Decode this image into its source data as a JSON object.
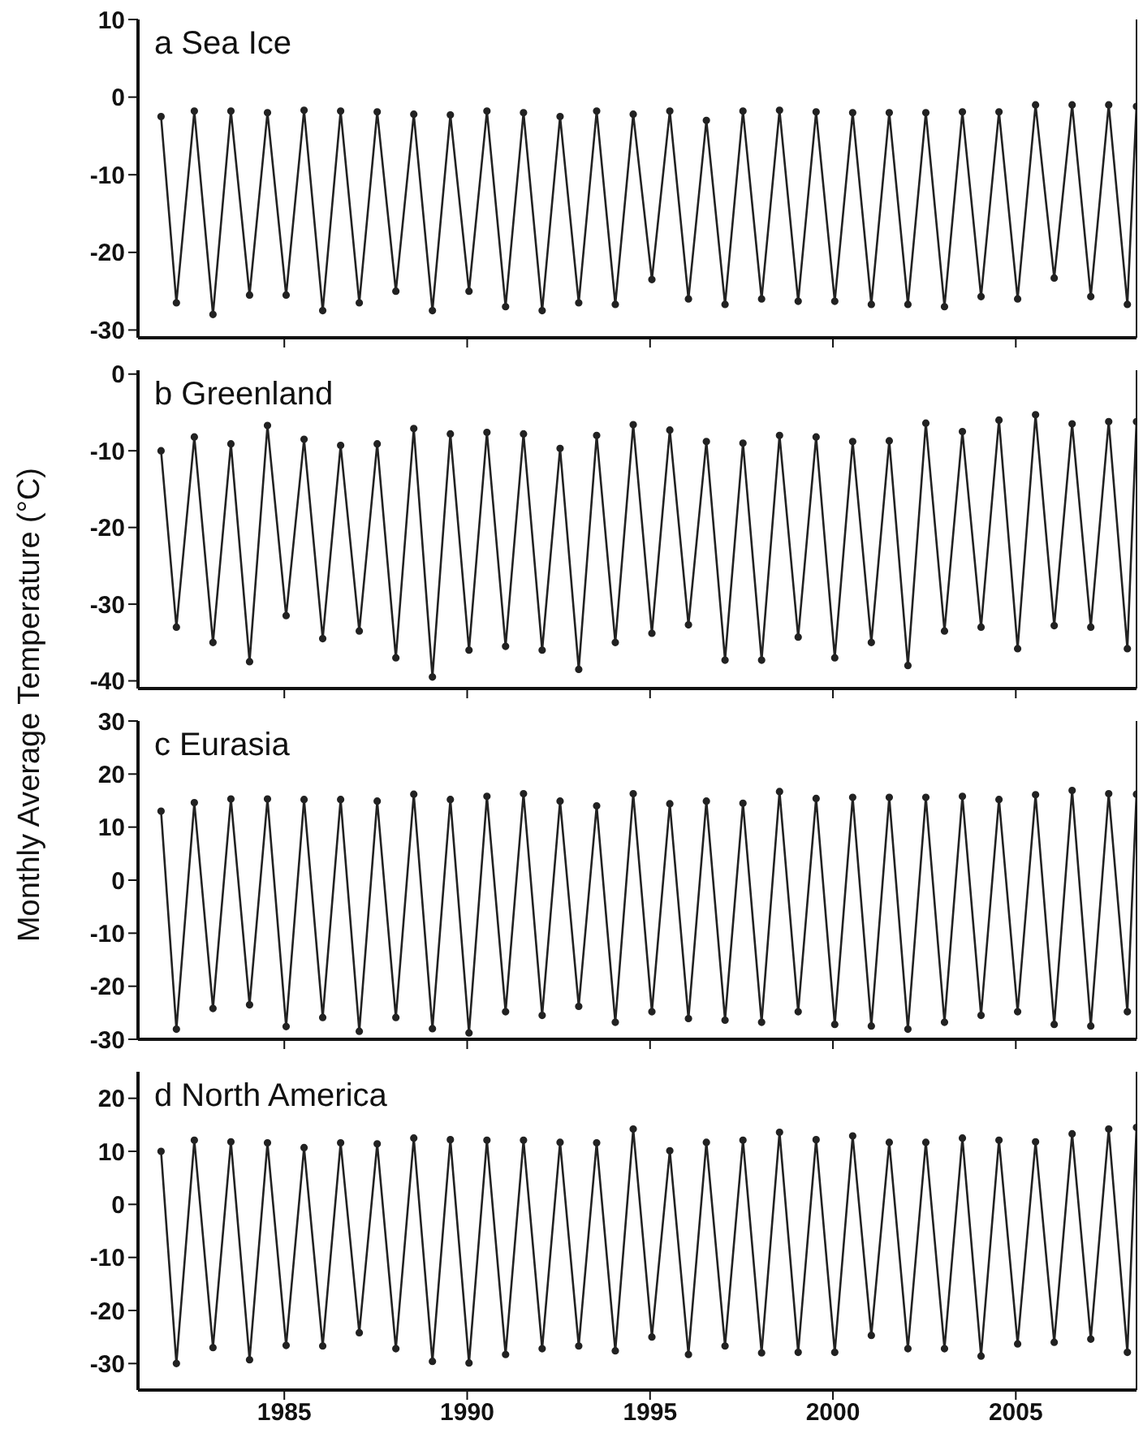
{
  "chart_data": [
    {
      "type": "line",
      "title": "a Sea Ice",
      "ylabel": "Monthly Average Temperature (°C)",
      "xlim": [
        1981,
        2008.3
      ],
      "xticks": [
        {
          "value": 1985,
          "label": null
        },
        {
          "value": 1990,
          "label": null
        },
        {
          "value": 1995,
          "label": null
        },
        {
          "value": 2000,
          "label": null
        },
        {
          "value": 2005,
          "label": null
        }
      ],
      "ylim": [
        -31,
        10
      ],
      "yticks": [
        -30,
        -20,
        -10,
        0,
        10
      ],
      "tick_labels": "y",
      "marker": "circle",
      "grid": false,
      "legend": false,
      "x": [
        1981.63,
        1982.05,
        1982.54,
        1983.05,
        1983.54,
        1984.05,
        1984.54,
        1985.05,
        1985.54,
        1986.05,
        1986.54,
        1987.05,
        1987.54,
        1988.05,
        1988.54,
        1989.05,
        1989.54,
        1990.05,
        1990.54,
        1991.05,
        1991.54,
        1992.05,
        1992.54,
        1993.05,
        1993.54,
        1994.05,
        1994.54,
        1995.05,
        1995.54,
        1996.05,
        1996.54,
        1997.05,
        1997.54,
        1998.05,
        1998.54,
        1999.05,
        1999.54,
        2000.05,
        2000.54,
        2001.05,
        2001.54,
        2002.05,
        2002.54,
        2003.05,
        2003.54,
        2004.05,
        2004.54,
        2005.05,
        2005.54,
        2006.05,
        2006.54,
        2007.05,
        2007.54,
        2008.05,
        2008.3
      ],
      "series": [
        {
          "color": "#222222",
          "values": [
            -2.5,
            -26.5,
            -1.8,
            -28,
            -1.8,
            -25.5,
            -2,
            -25.5,
            -1.7,
            -27.5,
            -1.8,
            -26.5,
            -1.9,
            -25,
            -2.2,
            -27.5,
            -2.3,
            -25,
            -1.8,
            -27,
            -2,
            -27.5,
            -2.5,
            -26.5,
            -1.8,
            -26.7,
            -2.2,
            -23.5,
            -1.8,
            -26,
            -3,
            -26.7,
            -1.8,
            -26,
            -1.7,
            -26.3,
            -1.9,
            -26.3,
            -2,
            -26.7,
            -2,
            -26.7,
            -2,
            -27,
            -1.9,
            -25.7,
            -1.9,
            -26,
            -1,
            -23.3,
            -1,
            -25.7,
            -1,
            -26.7,
            -1.2
          ]
        }
      ]
    },
    {
      "type": "line",
      "title": "b Greenland",
      "xlim": [
        1981,
        2008.3
      ],
      "xticks": [
        {
          "value": 1985,
          "label": null
        },
        {
          "value": 1990,
          "label": null
        },
        {
          "value": 1995,
          "label": null
        },
        {
          "value": 2000,
          "label": null
        },
        {
          "value": 2005,
          "label": null
        }
      ],
      "ylim": [
        -41,
        0.5
      ],
      "yticks": [
        -40,
        -30,
        -20,
        -10,
        0
      ],
      "tick_labels": "y",
      "marker": "circle",
      "grid": false,
      "legend": false,
      "x": [
        1981.63,
        1982.05,
        1982.54,
        1983.05,
        1983.54,
        1984.05,
        1984.54,
        1985.05,
        1985.54,
        1986.05,
        1986.54,
        1987.05,
        1987.54,
        1988.05,
        1988.54,
        1989.05,
        1989.54,
        1990.05,
        1990.54,
        1991.05,
        1991.54,
        1992.05,
        1992.54,
        1993.05,
        1993.54,
        1994.05,
        1994.54,
        1995.05,
        1995.54,
        1996.05,
        1996.54,
        1997.05,
        1997.54,
        1998.05,
        1998.54,
        1999.05,
        1999.54,
        2000.05,
        2000.54,
        2001.05,
        2001.54,
        2002.05,
        2002.54,
        2003.05,
        2003.54,
        2004.05,
        2004.54,
        2005.05,
        2005.54,
        2006.05,
        2006.54,
        2007.05,
        2007.54,
        2008.05,
        2008.3
      ],
      "series": [
        {
          "color": "#222222",
          "values": [
            -10,
            -33,
            -8.2,
            -35,
            -9.1,
            -37.5,
            -6.7,
            -31.5,
            -8.5,
            -34.5,
            -9.3,
            -33.5,
            -9.1,
            -37,
            -7.1,
            -39.5,
            -7.8,
            -36,
            -7.6,
            -35.5,
            -7.8,
            -36,
            -9.7,
            -38.5,
            -8,
            -35,
            -6.6,
            -33.8,
            -7.3,
            -32.7,
            -8.8,
            -37.3,
            -9,
            -37.3,
            -8,
            -34.3,
            -8.2,
            -37,
            -8.8,
            -35,
            -8.7,
            -38,
            -6.4,
            -33.5,
            -7.5,
            -33,
            -6,
            -35.8,
            -5.3,
            -32.8,
            -6.5,
            -33,
            -6.2,
            -35.8,
            -6.2
          ]
        }
      ]
    },
    {
      "type": "line",
      "title": "c Eurasia",
      "xlim": [
        1981,
        2008.3
      ],
      "xticks": [
        {
          "value": 1985,
          "label": null
        },
        {
          "value": 1990,
          "label": null
        },
        {
          "value": 1995,
          "label": null
        },
        {
          "value": 2000,
          "label": null
        },
        {
          "value": 2005,
          "label": null
        }
      ],
      "ylim": [
        -30,
        30
      ],
      "yticks": [
        -30,
        -20,
        -10,
        0,
        10,
        20,
        30
      ],
      "tick_labels": "y",
      "marker": "circle",
      "grid": false,
      "legend": false,
      "x": [
        1981.63,
        1982.05,
        1982.54,
        1983.05,
        1983.54,
        1984.05,
        1984.54,
        1985.05,
        1985.54,
        1986.05,
        1986.54,
        1987.05,
        1987.54,
        1988.05,
        1988.54,
        1989.05,
        1989.54,
        1990.05,
        1990.54,
        1991.05,
        1991.54,
        1992.05,
        1992.54,
        1993.05,
        1993.54,
        1994.05,
        1994.54,
        1995.05,
        1995.54,
        1996.05,
        1996.54,
        1997.05,
        1997.54,
        1998.05,
        1998.54,
        1999.05,
        1999.54,
        2000.05,
        2000.54,
        2001.05,
        2001.54,
        2002.05,
        2002.54,
        2003.05,
        2003.54,
        2004.05,
        2004.54,
        2005.05,
        2005.54,
        2006.05,
        2006.54,
        2007.05,
        2007.54,
        2008.05,
        2008.3
      ],
      "series": [
        {
          "color": "#222222",
          "values": [
            13,
            -28.1,
            14.6,
            -24.2,
            15.3,
            -23.5,
            15.3,
            -27.6,
            15.2,
            -25.9,
            15.2,
            -28.5,
            14.9,
            -25.9,
            16.2,
            -28,
            15.2,
            -28.8,
            15.8,
            -24.8,
            16.3,
            -25.5,
            14.9,
            -23.8,
            14,
            -26.8,
            16.3,
            -24.8,
            14.4,
            -26.1,
            14.9,
            -26.4,
            14.5,
            -26.8,
            16.7,
            -24.8,
            15.4,
            -27.2,
            15.6,
            -27.5,
            15.6,
            -28.1,
            15.6,
            -26.8,
            15.8,
            -25.5,
            15.2,
            -24.8,
            16.1,
            -27.2,
            16.9,
            -27.5,
            16.3,
            -24.8,
            16.2
          ]
        }
      ]
    },
    {
      "type": "line",
      "title": "d North America",
      "xlim": [
        1981,
        2008.3
      ],
      "xticks": [
        1985,
        1990,
        1995,
        2000,
        2005
      ],
      "ylim": [
        -35,
        25
      ],
      "yticks": [
        -30,
        -20,
        -10,
        0,
        10,
        20
      ],
      "marker": "circle",
      "grid": false,
      "legend": false,
      "x": [
        1981.63,
        1982.05,
        1982.54,
        1983.05,
        1983.54,
        1984.05,
        1984.54,
        1985.05,
        1985.54,
        1986.05,
        1986.54,
        1987.05,
        1987.54,
        1988.05,
        1988.54,
        1989.05,
        1989.54,
        1990.05,
        1990.54,
        1991.05,
        1991.54,
        1992.05,
        1992.54,
        1993.05,
        1993.54,
        1994.05,
        1994.54,
        1995.05,
        1995.54,
        1996.05,
        1996.54,
        1997.05,
        1997.54,
        1998.05,
        1998.54,
        1999.05,
        1999.54,
        2000.05,
        2000.54,
        2001.05,
        2001.54,
        2002.05,
        2002.54,
        2003.05,
        2003.54,
        2004.05,
        2004.54,
        2005.05,
        2005.54,
        2006.05,
        2006.54,
        2007.05,
        2007.54,
        2008.05,
        2008.3
      ],
      "series": [
        {
          "color": "#222222",
          "values": [
            10,
            -30,
            12.1,
            -27,
            11.8,
            -29.3,
            11.6,
            -26.6,
            10.7,
            -26.7,
            11.6,
            -24.2,
            11.4,
            -27.2,
            12.5,
            -29.6,
            12.2,
            -29.9,
            12.1,
            -28.3,
            12.1,
            -27.2,
            11.7,
            -26.7,
            11.6,
            -27.6,
            14.2,
            -25,
            10.1,
            -28.3,
            11.7,
            -26.7,
            12.1,
            -28,
            13.6,
            -27.9,
            12.2,
            -27.9,
            12.9,
            -24.7,
            11.7,
            -27.2,
            11.7,
            -27.2,
            12.5,
            -28.6,
            12.1,
            -26.3,
            11.8,
            -26,
            13.3,
            -25.4,
            14.2,
            -27.9,
            14.5
          ]
        }
      ]
    }
  ]
}
